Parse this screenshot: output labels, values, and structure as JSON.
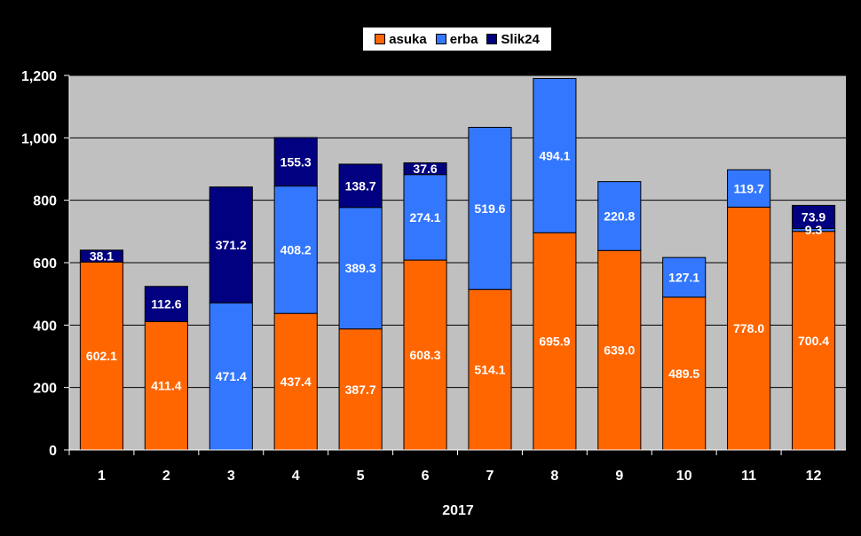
{
  "chart_data": {
    "type": "bar",
    "stacked": true,
    "categories": [
      "1",
      "2",
      "3",
      "4",
      "5",
      "6",
      "7",
      "8",
      "9",
      "10",
      "11",
      "12"
    ],
    "series": [
      {
        "name": "asuka",
        "color": "#ff6600",
        "values": [
          602.1,
          411.4,
          0,
          437.4,
          387.7,
          608.3,
          514.1,
          695.9,
          639.0,
          489.5,
          778.0,
          700.4
        ]
      },
      {
        "name": "erba",
        "color": "#3377ff",
        "values": [
          0,
          0,
          471.4,
          408.2,
          389.3,
          274.1,
          519.6,
          494.1,
          220.8,
          127.1,
          119.7,
          9.3
        ]
      },
      {
        "name": "Slik24",
        "color": "#000080",
        "values": [
          38.1,
          112.6,
          371.2,
          155.3,
          138.7,
          37.6,
          0,
          0,
          0,
          0,
          0,
          73.9
        ]
      }
    ],
    "data_labels": [
      [
        "602.1",
        "411.4",
        "",
        "437.4",
        "387.7",
        "608.3",
        "514.1",
        "695.9",
        "639.0",
        "489.5",
        "778.0",
        "700.4"
      ],
      [
        "",
        "",
        "471.4",
        "408.2",
        "389.3",
        "274.1",
        "519.6",
        "494.1",
        "220.8",
        "127.1",
        "119.7",
        "9.3"
      ],
      [
        "38.1",
        "112.6",
        "371.2",
        "155.3",
        "138.7",
        "37.6",
        "",
        "",
        "",
        "",
        "",
        "73.9"
      ]
    ],
    "xlabel": "2017",
    "ylabel": "",
    "ylim": [
      0,
      1200
    ],
    "yticks": [
      0,
      200,
      400,
      600,
      800,
      1000,
      1200
    ],
    "ytick_labels": [
      "0",
      "200",
      "400",
      "600",
      "800",
      "1,000",
      "1,200"
    ],
    "grid": true,
    "legend_position": "top-center",
    "background_color": "#000000",
    "plot_area_color": "#c0c0c0"
  }
}
